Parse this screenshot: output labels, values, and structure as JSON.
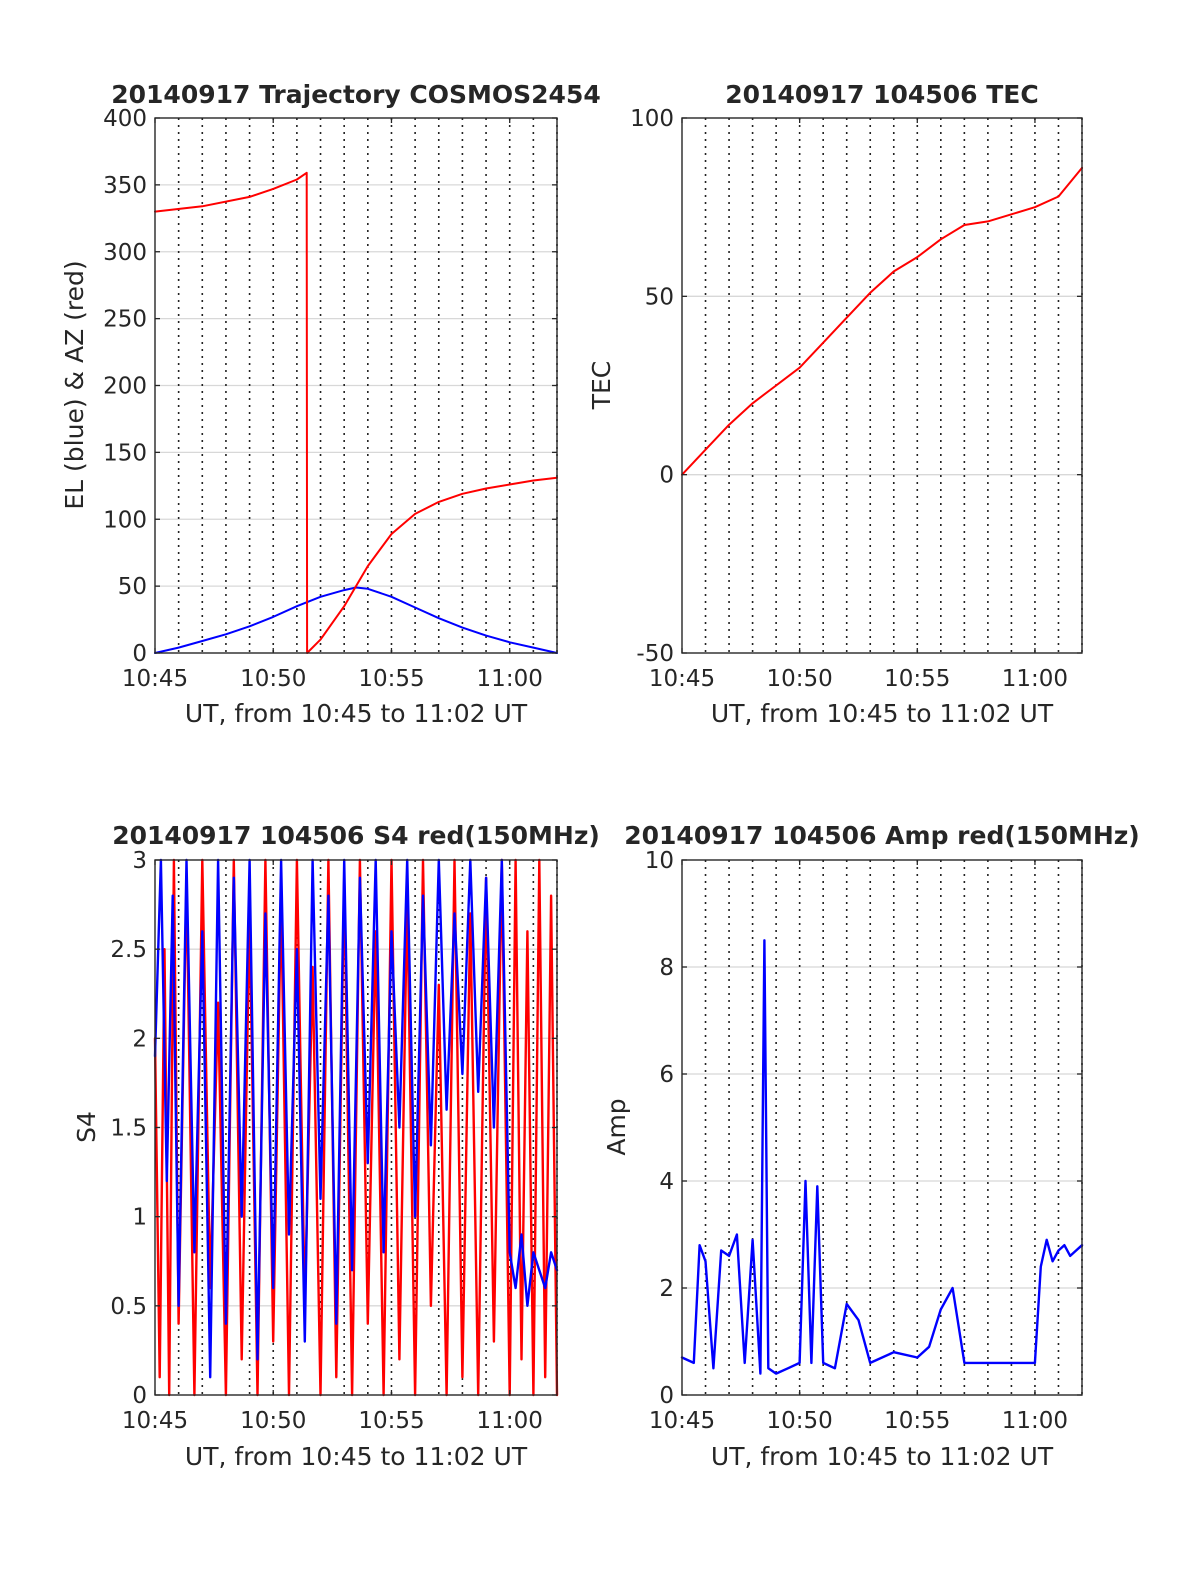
{
  "chart_data": [
    {
      "id": "trajectory",
      "type": "line",
      "title": "20140917 Trajectory COSMOS2454",
      "xlabel": "UT, from 10:45 to 11:02 UT",
      "ylabel": "EL (blue) & AZ (red)",
      "xlim": [
        "10:45",
        "11:02"
      ],
      "xticks": [
        "10:45",
        "10:50",
        "10:55",
        "11:00"
      ],
      "ylim": [
        0,
        400
      ],
      "yticks": [
        "0",
        "50",
        "100",
        "150",
        "200",
        "250",
        "300",
        "350",
        "400"
      ],
      "grid": true,
      "series": [
        {
          "name": "EL",
          "color": "#0000ff",
          "x": [
            "10:45",
            "10:46",
            "10:47",
            "10:48",
            "10:49",
            "10:50",
            "10:51",
            "10:52",
            "10:53",
            "10:53:30",
            "10:54",
            "10:55",
            "10:56",
            "10:57",
            "10:58",
            "10:59",
            "11:00",
            "11:01",
            "11:02"
          ],
          "y": [
            0,
            4,
            9,
            14,
            20,
            27,
            35,
            42,
            47,
            49,
            48,
            42,
            34,
            26,
            19,
            13,
            8,
            4,
            0
          ]
        },
        {
          "name": "AZ",
          "color": "#ff0000",
          "x": [
            "10:45",
            "10:47",
            "10:49",
            "10:50",
            "10:51",
            "10:51:25",
            "10:51:26",
            "10:52",
            "10:53",
            "10:54",
            "10:55",
            "10:56",
            "10:57",
            "10:58",
            "10:59",
            "11:00",
            "11:01",
            "11:02"
          ],
          "y": [
            330,
            334,
            341,
            347,
            354,
            359,
            0,
            10,
            35,
            65,
            89,
            104,
            113,
            119,
            123,
            126,
            129,
            131
          ]
        }
      ]
    },
    {
      "id": "tec",
      "type": "line",
      "title": "20140917 104506 TEC",
      "xlabel": "UT, from 10:45 to 11:02 UT",
      "ylabel": "TEC",
      "xlim": [
        "10:45",
        "11:02"
      ],
      "xticks": [
        "10:45",
        "10:50",
        "10:55",
        "11:00"
      ],
      "ylim": [
        -50,
        100
      ],
      "yticks": [
        "-50",
        "0",
        "50",
        "100"
      ],
      "grid": true,
      "series": [
        {
          "name": "TEC",
          "color": "#ff0000",
          "x": [
            "10:45",
            "10:46",
            "10:47",
            "10:48",
            "10:49",
            "10:50",
            "10:51",
            "10:52",
            "10:53",
            "10:54",
            "10:55",
            "10:56",
            "10:57",
            "10:58",
            "10:59",
            "11:00",
            "11:01",
            "11:02"
          ],
          "y": [
            0,
            7,
            14,
            20,
            25,
            30,
            37,
            44,
            51,
            57,
            61,
            66,
            70,
            71,
            73,
            75,
            78,
            86
          ]
        }
      ]
    },
    {
      "id": "s4",
      "type": "line",
      "title": "20140917 104506 S4 red(150MHz)",
      "xlabel": "UT, from 10:45 to 11:02 UT",
      "ylabel": "S4",
      "xlim": [
        "10:45",
        "11:02"
      ],
      "xticks": [
        "10:45",
        "10:50",
        "10:55",
        "11:00"
      ],
      "ylim": [
        0,
        3
      ],
      "yticks": [
        "0",
        "0.5",
        "1",
        "1.5",
        "2",
        "2.5",
        "3"
      ],
      "grid": true,
      "series": [
        {
          "name": "red",
          "color": "#ff0000",
          "x": [
            "10:45",
            "10:45:12",
            "10:45:24",
            "10:45:36",
            "10:45:48",
            "10:46",
            "10:46:20",
            "10:46:40",
            "10:47",
            "10:47:20",
            "10:47:40",
            "10:48",
            "10:48:20",
            "10:48:40",
            "10:49",
            "10:49:20",
            "10:49:40",
            "10:50",
            "10:50:20",
            "10:50:40",
            "10:51",
            "10:51:20",
            "10:51:40",
            "10:52",
            "10:52:20",
            "10:52:40",
            "10:53",
            "10:53:20",
            "10:53:40",
            "10:54",
            "10:54:20",
            "10:54:40",
            "10:55",
            "10:55:20",
            "10:55:40",
            "10:56",
            "10:56:20",
            "10:56:40",
            "10:57",
            "10:57:20",
            "10:57:40",
            "10:58",
            "10:58:20",
            "10:58:40",
            "10:59",
            "10:59:20",
            "10:59:40",
            "11:00",
            "11:00:15",
            "11:00:30",
            "11:00:45",
            "11:01",
            "11:01:15",
            "11:01:30",
            "11:01:45",
            "11:02"
          ],
          "y": [
            2.0,
            0.1,
            2.5,
            0.0,
            3.0,
            0.4,
            2.9,
            0.0,
            3.0,
            0.6,
            2.2,
            0.0,
            3.0,
            0.2,
            2.7,
            0.0,
            3.0,
            0.3,
            2.8,
            0.0,
            3.0,
            0.5,
            2.4,
            0.0,
            3.0,
            0.1,
            2.9,
            0.0,
            3.0,
            0.4,
            2.6,
            0.0,
            3.0,
            0.2,
            2.8,
            0.0,
            3.0,
            0.5,
            2.3,
            0.0,
            3.0,
            0.1,
            2.7,
            0.0,
            2.9,
            0.3,
            3.0,
            0.0,
            3.0,
            0.2,
            2.6,
            0.0,
            3.0,
            0.1,
            2.8,
            0.0
          ]
        },
        {
          "name": "blue",
          "color": "#0000ff",
          "x": [
            "10:45",
            "10:45:15",
            "10:45:30",
            "10:45:45",
            "10:46",
            "10:46:20",
            "10:46:40",
            "10:47",
            "10:47:20",
            "10:47:40",
            "10:48",
            "10:48:20",
            "10:48:40",
            "10:49",
            "10:49:20",
            "10:49:40",
            "10:50",
            "10:50:20",
            "10:50:40",
            "10:51",
            "10:51:20",
            "10:51:40",
            "10:52",
            "10:52:20",
            "10:52:40",
            "10:53",
            "10:53:20",
            "10:53:40",
            "10:54",
            "10:54:20",
            "10:54:40",
            "10:55",
            "10:55:20",
            "10:55:40",
            "10:56",
            "10:56:20",
            "10:56:40",
            "10:57",
            "10:57:20",
            "10:57:40",
            "10:58",
            "10:58:20",
            "10:58:40",
            "10:59",
            "10:59:20",
            "10:59:40",
            "11:00",
            "11:00:15",
            "11:00:30",
            "11:00:45",
            "11:01",
            "11:01:15",
            "11:01:30",
            "11:01:45",
            "11:02"
          ],
          "y": [
            1.9,
            3.0,
            1.2,
            2.8,
            0.5,
            3.0,
            0.8,
            2.6,
            0.1,
            3.0,
            0.4,
            2.9,
            1.0,
            3.0,
            0.2,
            2.7,
            0.6,
            3.0,
            0.9,
            2.5,
            0.3,
            3.0,
            1.1,
            2.8,
            0.4,
            3.0,
            0.7,
            2.9,
            1.3,
            3.0,
            0.8,
            2.6,
            1.5,
            3.0,
            1.0,
            2.8,
            1.4,
            3.0,
            1.6,
            2.7,
            1.8,
            3.0,
            1.7,
            2.9,
            1.5,
            3.0,
            0.8,
            0.6,
            0.9,
            0.5,
            0.8,
            0.7,
            0.6,
            0.8,
            0.7
          ]
        }
      ]
    },
    {
      "id": "amp",
      "type": "line",
      "title": "20140917 104506 Amp red(150MHz)",
      "xlabel": "UT, from 10:45 to 11:02 UT",
      "ylabel": "Amp",
      "xlim": [
        "10:45",
        "11:02"
      ],
      "xticks": [
        "10:45",
        "10:50",
        "10:55",
        "11:00"
      ],
      "ylim": [
        0,
        10
      ],
      "yticks": [
        "0",
        "2",
        "4",
        "6",
        "8",
        "10"
      ],
      "grid": true,
      "series": [
        {
          "name": "Amp",
          "color": "#0000ff",
          "x": [
            "10:45",
            "10:45:30",
            "10:45:45",
            "10:46",
            "10:46:20",
            "10:46:40",
            "10:47",
            "10:47:20",
            "10:47:40",
            "10:48",
            "10:48:20",
            "10:48:30",
            "10:48:40",
            "10:49",
            "10:49:30",
            "10:50",
            "10:50:15",
            "10:50:30",
            "10:50:45",
            "10:51",
            "10:51:30",
            "10:52",
            "10:52:30",
            "10:53",
            "10:54",
            "10:55",
            "10:55:30",
            "10:56",
            "10:56:30",
            "10:57",
            "10:58",
            "10:59",
            "11:00",
            "11:00:15",
            "11:00:30",
            "11:00:45",
            "11:01",
            "11:01:15",
            "11:01:30",
            "11:01:45",
            "11:02"
          ],
          "y": [
            0.7,
            0.6,
            2.8,
            2.5,
            0.5,
            2.7,
            2.6,
            3.0,
            0.6,
            2.9,
            0.4,
            8.5,
            0.5,
            0.4,
            0.5,
            0.6,
            4.0,
            0.6,
            3.9,
            0.6,
            0.5,
            1.7,
            1.4,
            0.6,
            0.8,
            0.7,
            0.9,
            1.6,
            2.0,
            0.6,
            0.6,
            0.6,
            0.6,
            2.4,
            2.9,
            2.5,
            2.7,
            2.8,
            2.6,
            2.7,
            2.8
          ]
        }
      ]
    }
  ]
}
